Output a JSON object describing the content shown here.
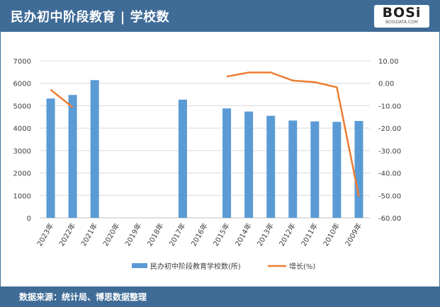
{
  "header": {
    "title": "民办初中阶段教育 | 学校数"
  },
  "logo": {
    "word": "BOSi",
    "sub": "BOSIDATA.COM"
  },
  "footer": {
    "source": "数据来源：统计局、博思数据整理"
  },
  "colors": {
    "frame": "#3f6b97",
    "bar": "#5b9bd5",
    "line": "#ed7d31"
  },
  "chart_data": {
    "type": "bar",
    "categories": [
      "2023年",
      "2022年",
      "2021年",
      "2020年",
      "2019年",
      "2018年",
      "2017年",
      "2016年",
      "2015年",
      "2014年",
      "2013年",
      "2012年",
      "2011年",
      "2010年",
      "2009年"
    ],
    "series": [
      {
        "name": "民办初中阶段教育学校数(所)",
        "type": "bar",
        "axis": "left",
        "values": [
          5320,
          5480,
          6140,
          null,
          null,
          null,
          5270,
          null,
          4880,
          4740,
          4550,
          4340,
          4300,
          4280,
          4320
        ]
      },
      {
        "name": "增长(%)",
        "type": "line",
        "axis": "right",
        "values": [
          -2.9,
          -10.7,
          null,
          null,
          null,
          null,
          null,
          null,
          3.0,
          4.8,
          4.8,
          1.2,
          0.5,
          -1.8,
          -50.5
        ]
      }
    ],
    "y_left": {
      "min": 0,
      "max": 7000,
      "ticks": [
        "0",
        "1000",
        "2000",
        "3000",
        "4000",
        "5000",
        "6000",
        "7000"
      ]
    },
    "y_right": {
      "min": -60,
      "max": 10,
      "ticks": [
        "-60.00",
        "-50.00",
        "-40.00",
        "-30.00",
        "-20.00",
        "-10.00",
        "0.00",
        "10.00"
      ]
    },
    "grid": true,
    "legend": "bottom"
  }
}
